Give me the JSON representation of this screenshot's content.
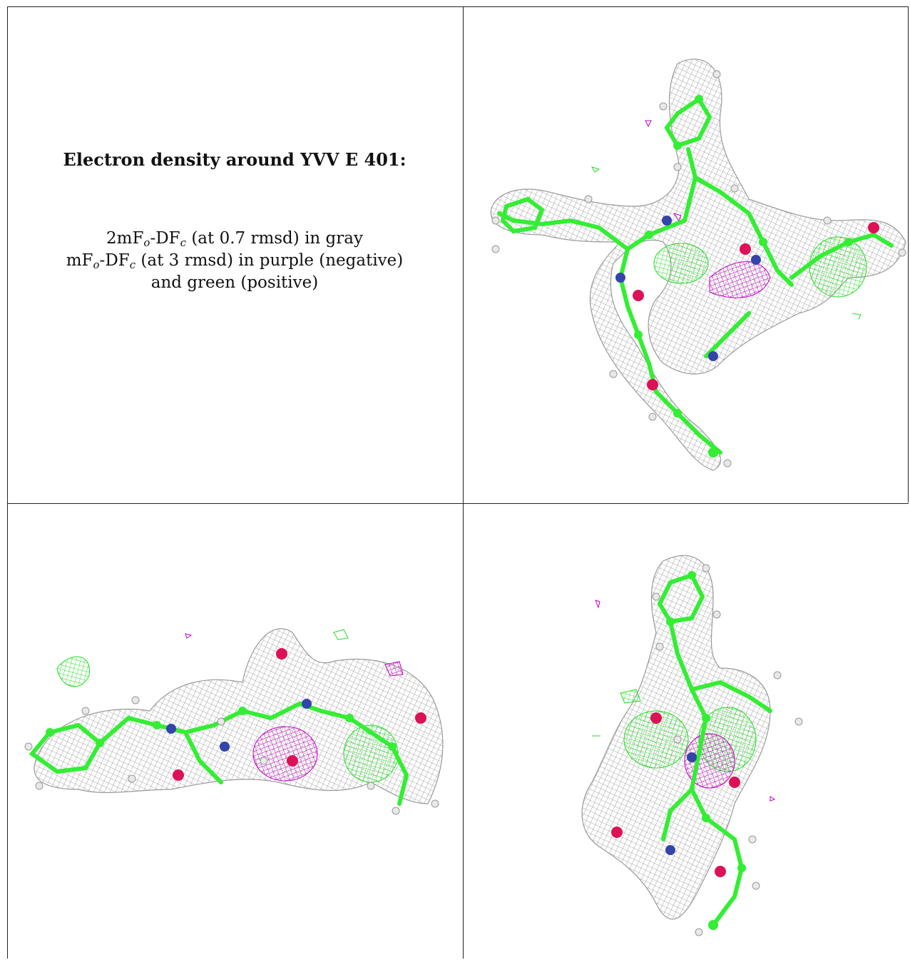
{
  "caption": {
    "title": "Electron density around YVV E 401:",
    "line1": {
      "pre": "2mF",
      "sub1": "o",
      "mid": "-DF",
      "sub2": "c",
      "post": " (at 0.7 rmsd) in gray"
    },
    "line2": {
      "pre": "mF",
      "sub1": "o",
      "mid": "-DF",
      "sub2": "c",
      "post": " (at 3 rmsd) in purple (negative)"
    },
    "line3": "and green (positive)"
  },
  "colors": {
    "mesh_2fofc": "#8a8a8a",
    "mesh_negative": "#c000c0",
    "mesh_positive": "#22dd22",
    "carbon": "#33ee33",
    "nitrogen": "#3344aa",
    "oxygen": "#dd1155",
    "hydrogen": "#e8e8e8"
  },
  "panels": [
    {
      "view": "view-1"
    },
    {
      "view": "view-2"
    },
    {
      "view": "view-3"
    }
  ]
}
